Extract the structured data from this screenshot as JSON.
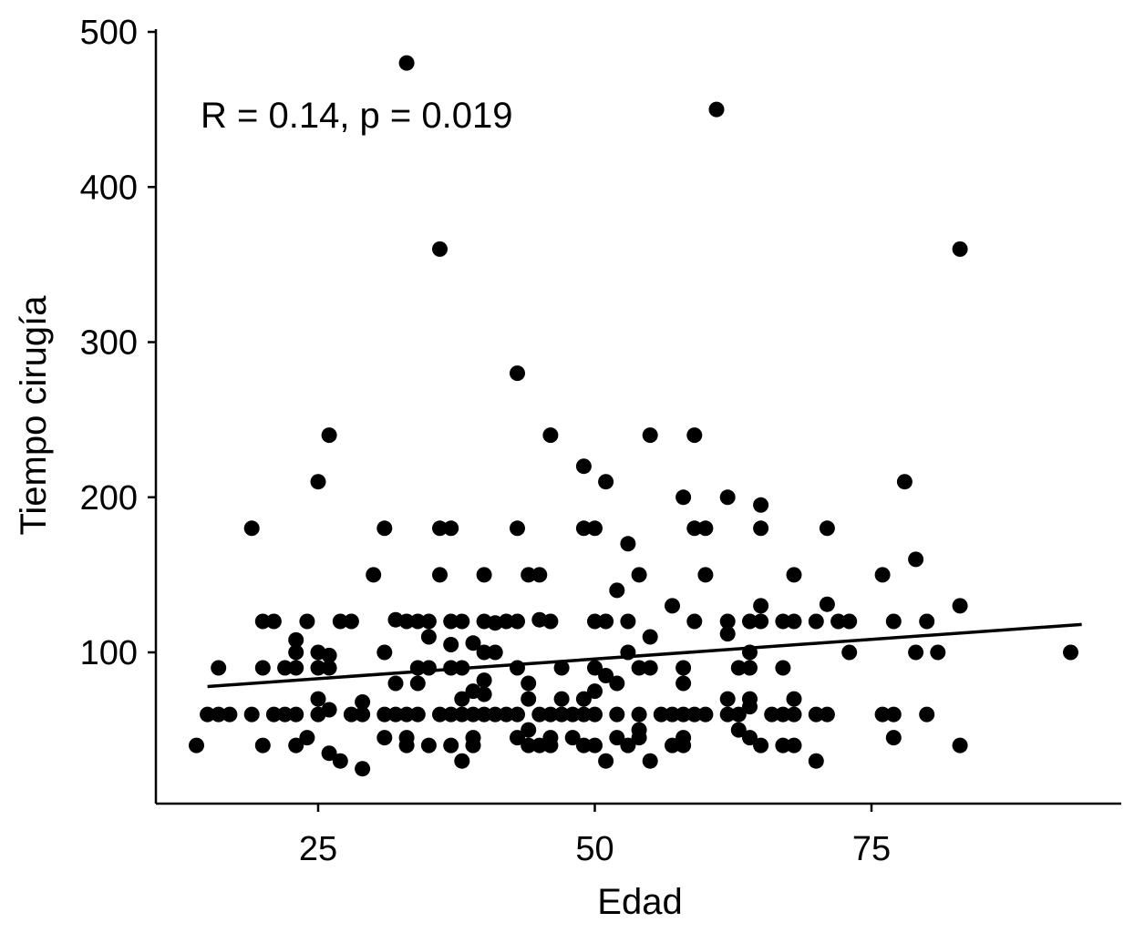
{
  "chart_data": {
    "type": "scatter",
    "xlabel": "Edad",
    "ylabel": "Tiempo cirugía",
    "annotation": "R = 0.14, p = 0.019",
    "xlim": [
      11,
      96
    ],
    "ylim": [
      5,
      500
    ],
    "xticks": [
      25,
      50,
      75
    ],
    "yticks": [
      100,
      200,
      300,
      400,
      500
    ],
    "grid": false,
    "point_color": "#000000",
    "trend_line": {
      "x": [
        15,
        94
      ],
      "y": [
        78,
        118
      ]
    },
    "points": [
      [
        14,
        40
      ],
      [
        15,
        60
      ],
      [
        16,
        90
      ],
      [
        16,
        60
      ],
      [
        17,
        60
      ],
      [
        19,
        180
      ],
      [
        19,
        60
      ],
      [
        20,
        120
      ],
      [
        20,
        90
      ],
      [
        20,
        40
      ],
      [
        21,
        120
      ],
      [
        21,
        60
      ],
      [
        22,
        60
      ],
      [
        22,
        90
      ],
      [
        23,
        108
      ],
      [
        23,
        100
      ],
      [
        23,
        90
      ],
      [
        23,
        60
      ],
      [
        23,
        40
      ],
      [
        24,
        120
      ],
      [
        24,
        45
      ],
      [
        25,
        210
      ],
      [
        25,
        100
      ],
      [
        25,
        90
      ],
      [
        25,
        70
      ],
      [
        25,
        60
      ],
      [
        26,
        240
      ],
      [
        26,
        98
      ],
      [
        26,
        90
      ],
      [
        26,
        63
      ],
      [
        26,
        35
      ],
      [
        27,
        120
      ],
      [
        27,
        30
      ],
      [
        28,
        120
      ],
      [
        28,
        60
      ],
      [
        29,
        68
      ],
      [
        29,
        60
      ],
      [
        29,
        25
      ],
      [
        30,
        150
      ],
      [
        31,
        180
      ],
      [
        31,
        100
      ],
      [
        31,
        60
      ],
      [
        31,
        45
      ],
      [
        32,
        121
      ],
      [
        32,
        80
      ],
      [
        32,
        60
      ],
      [
        33,
        480
      ],
      [
        33,
        120
      ],
      [
        33,
        60
      ],
      [
        33,
        45
      ],
      [
        33,
        40
      ],
      [
        34,
        120
      ],
      [
        34,
        90
      ],
      [
        34,
        80
      ],
      [
        34,
        60
      ],
      [
        35,
        120
      ],
      [
        35,
        110
      ],
      [
        35,
        90
      ],
      [
        35,
        40
      ],
      [
        36,
        360
      ],
      [
        36,
        180
      ],
      [
        36,
        150
      ],
      [
        36,
        60
      ],
      [
        37,
        180
      ],
      [
        37,
        120
      ],
      [
        37,
        105
      ],
      [
        37,
        90
      ],
      [
        37,
        60
      ],
      [
        37,
        40
      ],
      [
        38,
        120
      ],
      [
        38,
        90
      ],
      [
        38,
        70
      ],
      [
        38,
        60
      ],
      [
        38,
        30
      ],
      [
        39,
        106
      ],
      [
        39,
        75
      ],
      [
        39,
        60
      ],
      [
        39,
        45
      ],
      [
        39,
        40
      ],
      [
        40,
        150
      ],
      [
        40,
        120
      ],
      [
        40,
        100
      ],
      [
        40,
        82
      ],
      [
        40,
        73
      ],
      [
        40,
        60
      ],
      [
        41,
        119
      ],
      [
        41,
        100
      ],
      [
        41,
        60
      ],
      [
        42,
        120
      ],
      [
        42,
        60
      ],
      [
        43,
        280
      ],
      [
        43,
        180
      ],
      [
        43,
        120
      ],
      [
        43,
        90
      ],
      [
        43,
        60
      ],
      [
        43,
        45
      ],
      [
        44,
        150
      ],
      [
        44,
        80
      ],
      [
        44,
        70
      ],
      [
        44,
        50
      ],
      [
        44,
        40
      ],
      [
        45,
        150
      ],
      [
        45,
        121
      ],
      [
        45,
        60
      ],
      [
        45,
        40
      ],
      [
        46,
        240
      ],
      [
        46,
        120
      ],
      [
        46,
        60
      ],
      [
        46,
        45
      ],
      [
        46,
        40
      ],
      [
        47,
        90
      ],
      [
        47,
        70
      ],
      [
        47,
        60
      ],
      [
        48,
        60
      ],
      [
        48,
        45
      ],
      [
        49,
        220
      ],
      [
        49,
        180
      ],
      [
        49,
        70
      ],
      [
        49,
        60
      ],
      [
        49,
        40
      ],
      [
        50,
        180
      ],
      [
        50,
        120
      ],
      [
        50,
        90
      ],
      [
        50,
        75
      ],
      [
        50,
        60
      ],
      [
        50,
        40
      ],
      [
        51,
        210
      ],
      [
        51,
        120
      ],
      [
        51,
        85
      ],
      [
        51,
        30
      ],
      [
        52,
        140
      ],
      [
        52,
        80
      ],
      [
        52,
        60
      ],
      [
        52,
        45
      ],
      [
        53,
        170
      ],
      [
        53,
        120
      ],
      [
        53,
        100
      ],
      [
        53,
        40
      ],
      [
        54,
        150
      ],
      [
        54,
        90
      ],
      [
        54,
        60
      ],
      [
        54,
        50
      ],
      [
        54,
        45
      ],
      [
        55,
        240
      ],
      [
        55,
        110
      ],
      [
        55,
        90
      ],
      [
        55,
        30
      ],
      [
        56,
        60
      ],
      [
        57,
        130
      ],
      [
        57,
        60
      ],
      [
        57,
        40
      ],
      [
        58,
        200
      ],
      [
        58,
        90
      ],
      [
        58,
        80
      ],
      [
        58,
        60
      ],
      [
        58,
        45
      ],
      [
        58,
        40
      ],
      [
        59,
        240
      ],
      [
        59,
        180
      ],
      [
        59,
        120
      ],
      [
        59,
        60
      ],
      [
        60,
        180
      ],
      [
        60,
        150
      ],
      [
        60,
        60
      ],
      [
        61,
        450
      ],
      [
        62,
        200
      ],
      [
        62,
        120
      ],
      [
        62,
        112
      ],
      [
        62,
        70
      ],
      [
        62,
        60
      ],
      [
        63,
        90
      ],
      [
        63,
        60
      ],
      [
        63,
        50
      ],
      [
        64,
        120
      ],
      [
        64,
        100
      ],
      [
        64,
        90
      ],
      [
        64,
        70
      ],
      [
        64,
        65
      ],
      [
        64,
        45
      ],
      [
        65,
        195
      ],
      [
        65,
        180
      ],
      [
        65,
        130
      ],
      [
        65,
        120
      ],
      [
        65,
        40
      ],
      [
        66,
        60
      ],
      [
        67,
        120
      ],
      [
        67,
        90
      ],
      [
        67,
        60
      ],
      [
        67,
        40
      ],
      [
        68,
        150
      ],
      [
        68,
        120
      ],
      [
        68,
        70
      ],
      [
        68,
        60
      ],
      [
        68,
        40
      ],
      [
        70,
        120
      ],
      [
        70,
        60
      ],
      [
        70,
        30
      ],
      [
        71,
        180
      ],
      [
        71,
        131
      ],
      [
        71,
        60
      ],
      [
        72,
        120
      ],
      [
        73,
        120
      ],
      [
        73,
        100
      ],
      [
        76,
        150
      ],
      [
        76,
        60
      ],
      [
        77,
        120
      ],
      [
        77,
        60
      ],
      [
        77,
        45
      ],
      [
        78,
        210
      ],
      [
        79,
        160
      ],
      [
        79,
        100
      ],
      [
        80,
        120
      ],
      [
        80,
        60
      ],
      [
        81,
        100
      ],
      [
        83,
        360
      ],
      [
        83,
        130
      ],
      [
        83,
        40
      ],
      [
        93,
        100
      ]
    ]
  }
}
